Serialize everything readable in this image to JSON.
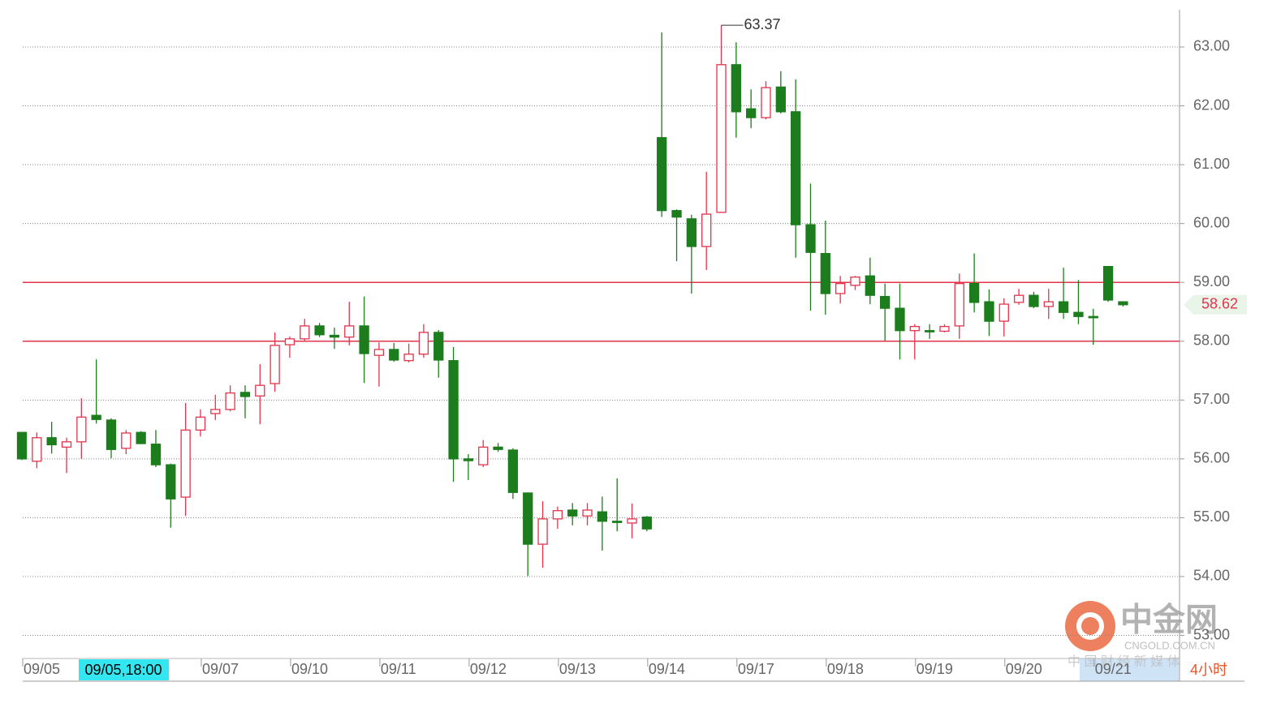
{
  "chart_data": {
    "type": "candlestick",
    "categories": [
      "09/05",
      null,
      null,
      null,
      null,
      null,
      null,
      null,
      null,
      null,
      null,
      null,
      "09/07",
      null,
      null,
      null,
      null,
      null,
      "09/10",
      null,
      null,
      null,
      null,
      null,
      "09/11",
      null,
      null,
      null,
      null,
      null,
      "09/12",
      null,
      null,
      null,
      null,
      null,
      "09/13",
      null,
      null,
      null,
      null,
      null,
      "09/14",
      null,
      null,
      null,
      null,
      null,
      "09/17",
      null,
      null,
      null,
      null,
      null,
      "09/18",
      null,
      null,
      null,
      null,
      null,
      "09/19",
      null,
      null,
      null,
      null,
      null,
      "09/20",
      null,
      null,
      null,
      null,
      null,
      "09/21",
      null,
      null
    ],
    "open": [
      56.45,
      55.96,
      56.36,
      56.2,
      56.29,
      56.74,
      56.66,
      56.18,
      56.45,
      56.25,
      55.9,
      55.35,
      56.49,
      56.77,
      56.84,
      57.13,
      57.07,
      57.28,
      57.94,
      58.04,
      58.26,
      58.1,
      58.07,
      58.26,
      57.76,
      57.86,
      57.67,
      57.78,
      58.15,
      57.67,
      56.0,
      55.9,
      56.2,
      56.15,
      55.42,
      54.55,
      54.98,
      55.13,
      55.03,
      55.1,
      54.94,
      54.91,
      55.01,
      61.46,
      60.22,
      60.08,
      59.61,
      60.19,
      62.7,
      61.95,
      61.8,
      62.32,
      61.9,
      59.98,
      59.49,
      58.81,
      58.95,
      59.11,
      58.76,
      58.56,
      58.18,
      58.18,
      58.17,
      58.26,
      58.98,
      58.67,
      58.34,
      58.66,
      58.78,
      58.59,
      58.67,
      58.49,
      58.42,
      59.27,
      58.67
    ],
    "high": [
      56.45,
      56.45,
      56.63,
      56.36,
      57.03,
      57.69,
      56.69,
      56.49,
      56.47,
      56.49,
      55.92,
      56.95,
      56.84,
      57.09,
      57.25,
      57.25,
      57.61,
      58.15,
      58.08,
      58.38,
      58.31,
      58.23,
      58.67,
      58.76,
      57.98,
      57.97,
      57.96,
      58.29,
      58.19,
      57.9,
      56.08,
      56.32,
      56.27,
      56.18,
      55.43,
      55.28,
      55.19,
      55.25,
      55.25,
      55.36,
      55.67,
      55.24,
      55.03,
      63.25,
      60.24,
      60.15,
      60.88,
      63.37,
      63.08,
      62.28,
      62.42,
      62.59,
      62.45,
      60.68,
      60.05,
      59.11,
      59.11,
      59.42,
      58.98,
      58.98,
      58.29,
      58.29,
      58.29,
      59.15,
      59.49,
      58.88,
      58.73,
      58.89,
      58.84,
      58.89,
      59.25,
      59.04,
      58.55,
      59.27,
      58.67
    ],
    "low": [
      55.98,
      55.84,
      56.09,
      55.76,
      56.0,
      56.6,
      56.01,
      56.08,
      56.25,
      55.86,
      54.83,
      55.03,
      56.38,
      56.66,
      56.81,
      56.69,
      56.59,
      57.14,
      57.72,
      58.0,
      58.07,
      57.87,
      57.93,
      57.29,
      57.23,
      57.65,
      57.64,
      57.72,
      57.38,
      55.61,
      55.64,
      55.86,
      56.12,
      55.32,
      54.01,
      54.15,
      54.81,
      54.87,
      54.87,
      54.44,
      54.77,
      54.65,
      54.77,
      60.11,
      59.36,
      58.81,
      59.21,
      60.19,
      61.46,
      61.62,
      61.77,
      61.87,
      59.42,
      58.52,
      58.45,
      58.64,
      58.87,
      58.63,
      58.01,
      57.69,
      57.69,
      58.04,
      58.15,
      58.04,
      58.49,
      58.09,
      58.08,
      58.62,
      58.56,
      58.38,
      58.38,
      58.29,
      57.94,
      58.67,
      58.59
    ],
    "close": [
      56.0,
      56.36,
      56.24,
      56.29,
      56.71,
      56.67,
      56.16,
      56.44,
      56.26,
      55.9,
      55.32,
      56.49,
      56.71,
      56.84,
      57.12,
      57.06,
      57.25,
      57.93,
      58.04,
      58.26,
      58.11,
      58.07,
      58.26,
      57.79,
      57.86,
      57.68,
      57.78,
      58.15,
      57.68,
      56.0,
      55.97,
      56.2,
      56.16,
      55.43,
      54.55,
      54.98,
      55.12,
      55.03,
      55.13,
      54.94,
      54.93,
      54.98,
      54.81,
      60.22,
      60.11,
      59.61,
      60.16,
      62.7,
      61.9,
      61.8,
      62.31,
      61.9,
      59.98,
      59.51,
      58.81,
      58.98,
      59.09,
      58.78,
      58.56,
      58.18,
      58.25,
      58.17,
      58.25,
      58.98,
      58.66,
      58.34,
      58.63,
      58.78,
      58.59,
      58.67,
      58.49,
      58.42,
      58.41,
      58.7,
      58.62
    ],
    "up_color": "#e3344b",
    "down_color": "#1c7d1c",
    "hline_color": "#e3344b",
    "ylim": [
      52.62,
      63.65
    ],
    "yticks": [
      {
        "value": 53,
        "label": "53.00"
      },
      {
        "value": 54,
        "label": "54.00"
      },
      {
        "value": 55,
        "label": "55.00"
      },
      {
        "value": 56,
        "label": "56.00"
      },
      {
        "value": 57,
        "label": "57.00"
      },
      {
        "value": 58,
        "label": "58.00"
      },
      {
        "value": 59,
        "label": "59.00"
      },
      {
        "value": 60,
        "label": "60.00"
      },
      {
        "value": 61,
        "label": "61.00"
      },
      {
        "value": 62,
        "label": "62.00"
      },
      {
        "value": 63,
        "label": "63.00"
      }
    ],
    "grid": true,
    "hlines": [
      59,
      58
    ],
    "max_annotation": 63.37,
    "last_price": 58.62,
    "cursor_label": "09/05,18:00",
    "period": "4小时",
    "watermark": {
      "logo": "中金网",
      "url": "CNGOLD.COM.CN",
      "slogan": "中 国 财 经 新 媒 体"
    }
  }
}
